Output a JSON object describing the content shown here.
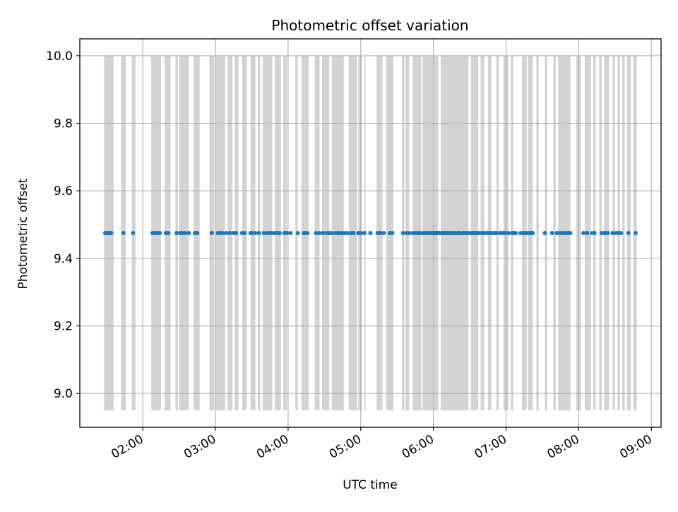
{
  "chart_data": {
    "type": "scatter",
    "title": "Photometric offset variation",
    "xlabel": "UTC time",
    "ylabel": "Photometric offset",
    "xlim": [
      "01:08",
      "09:08"
    ],
    "ylim": [
      8.9,
      10.05
    ],
    "x_ticks": [
      "02:00",
      "03:00",
      "04:00",
      "05:00",
      "06:00",
      "07:00",
      "08:00",
      "09:00"
    ],
    "y_ticks": [
      "9.0",
      "9.2",
      "9.4",
      "9.6",
      "9.8",
      "10.0"
    ],
    "grid": true,
    "marker_color": "#1f77b4",
    "band_color": "#d3d3d3",
    "bands_y_range": [
      8.95,
      10.0
    ],
    "series": [
      {
        "y_value": 9.475,
        "x": [
          "01:29",
          "01:30",
          "01:31",
          "01:32",
          "01:33",
          "01:34",
          "01:44",
          "01:52",
          "02:08",
          "02:10",
          "02:12",
          "02:14",
          "02:19",
          "02:21",
          "02:28",
          "02:31",
          "02:33",
          "02:35",
          "02:38",
          "02:43",
          "02:45",
          "02:57",
          "03:02",
          "03:04",
          "03:06",
          "03:09",
          "03:12",
          "03:15",
          "03:17",
          "03:22",
          "03:24",
          "03:29",
          "03:30",
          "03:33",
          "03:36",
          "03:40",
          "03:43",
          "03:45",
          "03:46",
          "03:48",
          "03:50",
          "03:51",
          "03:53",
          "03:57",
          "03:59",
          "04:02",
          "04:08",
          "04:13",
          "04:14",
          "04:16",
          "04:23",
          "04:26",
          "04:29",
          "04:32",
          "04:34",
          "04:36",
          "04:39",
          "04:41",
          "04:42",
          "04:44",
          "04:45",
          "04:47",
          "04:49",
          "04:52",
          "04:54",
          "04:58",
          "05:00",
          "05:03",
          "05:08",
          "05:14",
          "05:16",
          "05:19",
          "05:24",
          "05:26",
          "05:35",
          "05:38",
          "05:40",
          "05:43",
          "05:45",
          "05:47",
          "05:49",
          "05:51",
          "05:53",
          "05:55",
          "05:56",
          "05:58",
          "05:59",
          "06:00",
          "06:01",
          "06:02",
          "06:03",
          "06:04",
          "06:05",
          "06:06",
          "06:07",
          "06:08",
          "06:09",
          "06:10",
          "06:11",
          "06:12",
          "06:13",
          "06:14",
          "06:15",
          "06:17",
          "06:18",
          "06:20",
          "06:21",
          "06:22",
          "06:24",
          "06:25",
          "06:27",
          "06:29",
          "06:30",
          "06:32",
          "06:33",
          "06:34",
          "06:36",
          "06:37",
          "06:38",
          "06:40",
          "06:42",
          "06:44",
          "06:45",
          "06:47",
          "06:49",
          "06:51",
          "06:52",
          "06:55",
          "06:56",
          "06:58",
          "06:59",
          "07:02",
          "07:05",
          "07:07",
          "07:08",
          "07:12",
          "07:14",
          "07:16",
          "07:17",
          "07:19",
          "07:21",
          "07:22",
          "07:32",
          "07:38",
          "07:42",
          "07:44",
          "07:46",
          "07:48",
          "07:50",
          "07:51",
          "07:53",
          "08:04",
          "08:07",
          "08:11",
          "08:13",
          "08:19",
          "08:21",
          "08:22",
          "08:24",
          "08:28",
          "08:31",
          "08:33",
          "08:35",
          "08:41",
          "08:47"
        ]
      }
    ],
    "bands": [
      [
        "01:28",
        "01:36"
      ],
      [
        "01:42",
        "01:46"
      ],
      [
        "01:51",
        "01:54"
      ],
      [
        "02:07",
        "02:15"
      ],
      [
        "02:18",
        "02:23"
      ],
      [
        "02:27",
        "02:29"
      ],
      [
        "02:30",
        "02:38"
      ],
      [
        "02:42",
        "02:47"
      ],
      [
        "02:55",
        "02:59"
      ],
      [
        "03:00",
        "03:08"
      ],
      [
        "03:10",
        "03:14"
      ],
      [
        "03:16",
        "03:19"
      ],
      [
        "03:22",
        "03:26"
      ],
      [
        "03:29",
        "03:33"
      ],
      [
        "03:35",
        "03:37"
      ],
      [
        "03:39",
        "03:47"
      ],
      [
        "03:49",
        "03:54"
      ],
      [
        "03:56",
        "03:59"
      ],
      [
        "04:06",
        "04:08"
      ],
      [
        "04:11",
        "04:17"
      ],
      [
        "04:22",
        "04:26"
      ],
      [
        "04:28",
        "04:34"
      ],
      [
        "04:36",
        "04:46"
      ],
      [
        "04:50",
        "04:57"
      ],
      [
        "04:58",
        "05:01"
      ],
      [
        "05:03",
        "05:04"
      ],
      [
        "05:13",
        "05:18"
      ],
      [
        "05:21",
        "05:27"
      ],
      [
        "05:34",
        "05:36"
      ],
      [
        "05:37",
        "05:40"
      ],
      [
        "05:43",
        "05:50"
      ],
      [
        "05:51",
        "06:04"
      ],
      [
        "06:06",
        "06:29"
      ],
      [
        "06:31",
        "06:37"
      ],
      [
        "06:39",
        "06:42"
      ],
      [
        "06:45",
        "06:48"
      ],
      [
        "06:52",
        "06:54"
      ],
      [
        "06:58",
        "07:02"
      ],
      [
        "07:04",
        "07:06"
      ],
      [
        "07:13",
        "07:17"
      ],
      [
        "07:18",
        "07:22"
      ],
      [
        "07:25",
        "07:27"
      ],
      [
        "07:32",
        "07:34"
      ],
      [
        "07:39",
        "07:41"
      ],
      [
        "07:43",
        "07:53"
      ],
      [
        "07:58",
        "08:02"
      ],
      [
        "08:05",
        "08:10"
      ],
      [
        "08:12",
        "08:14"
      ],
      [
        "08:17",
        "08:19"
      ],
      [
        "08:21",
        "08:25"
      ],
      [
        "08:28",
        "08:30"
      ],
      [
        "08:32",
        "08:34"
      ],
      [
        "08:36",
        "08:38"
      ],
      [
        "08:40",
        "08:43"
      ],
      [
        "08:45",
        "08:48"
      ]
    ]
  }
}
